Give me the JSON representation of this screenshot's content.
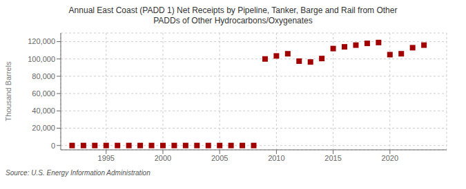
{
  "chart_data": {
    "type": "scatter",
    "title": "Annual East Coast (PADD 1) Net Receipts by Pipeline, Tanker, Barge and Rail from Other\nPADDs of Other Hydrocarbons/Oxygenates",
    "ylabel": "Thousand Barrels",
    "annotations": [
      "Source: U.S. Energy Information Administration"
    ],
    "x": [
      1992,
      1993,
      1994,
      1995,
      1996,
      1997,
      1998,
      1999,
      2000,
      2001,
      2002,
      2003,
      2004,
      2005,
      2006,
      2007,
      2008,
      2009,
      2010,
      2011,
      2012,
      2013,
      2014,
      2015,
      2016,
      2017,
      2018,
      2019,
      2020,
      2021,
      2022,
      2023
    ],
    "values": [
      0,
      0,
      0,
      0,
      0,
      0,
      0,
      0,
      0,
      0,
      0,
      0,
      0,
      0,
      0,
      0,
      0,
      100000,
      103500,
      106000,
      97500,
      96500,
      100500,
      112000,
      114000,
      116000,
      118000,
      119000,
      105000,
      106000,
      113000,
      116000
    ],
    "color": "#a00000",
    "marker": "square",
    "xlim": [
      1991,
      2025
    ],
    "xticks": [
      1995,
      2000,
      2005,
      2010,
      2015,
      2020
    ],
    "ylim": [
      -5000,
      130000
    ],
    "yticks": [
      0,
      {
        "value": 20000,
        "label": "20,000"
      },
      {
        "value": 40000,
        "label": "40,000"
      },
      {
        "value": 60000,
        "label": "60,000"
      },
      {
        "value": 80000,
        "label": "80,000"
      },
      {
        "value": 100000,
        "label": "100,000"
      },
      {
        "value": 120000,
        "label": "120,000"
      }
    ],
    "grid": true
  }
}
